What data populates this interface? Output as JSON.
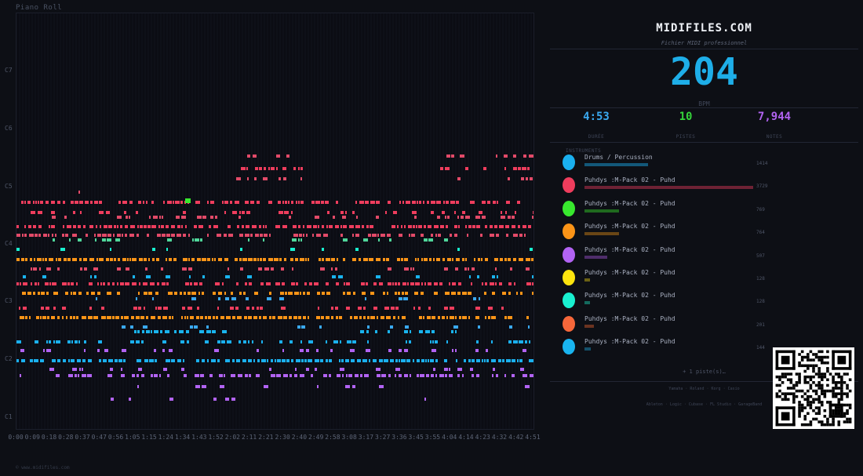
{
  "roll": {
    "title": "Piano Roll",
    "octave_labels": [
      "C7",
      "C6",
      "C5",
      "C4",
      "C3",
      "C2",
      "C1"
    ],
    "time_ticks": [
      "0:00",
      "0:09",
      "0:18",
      "0:28",
      "0:37",
      "0:47",
      "0:56",
      "1:05",
      "1:15",
      "1:24",
      "1:34",
      "1:43",
      "1:52",
      "2:02",
      "2:11",
      "2:21",
      "2:30",
      "2:40",
      "2:49",
      "2:58",
      "3:08",
      "3:17",
      "3:27",
      "3:36",
      "3:45",
      "3:55",
      "4:04",
      "4:14",
      "4:23",
      "4:32",
      "4:42",
      "4:51"
    ],
    "footer": "© www.midifiles.com"
  },
  "info": {
    "brand": "MIDIFILES.COM",
    "subtitle": "Fichier MIDI professionnel",
    "bpm": "204",
    "bpm_label": "BPM",
    "stats": [
      {
        "value": "4:53",
        "label": "DURÉE",
        "color": "#3aa9f0"
      },
      {
        "value": "10",
        "label": "PISTES",
        "color": "#35d43a"
      },
      {
        "value": "7,944",
        "label": "NOTES",
        "color": "#b163f0"
      }
    ],
    "instruments_header": "INSTRUMENTS",
    "instruments": [
      {
        "name": "Drums / Percussion",
        "count": "1414",
        "color": "#1ab0ef",
        "bar_color": "#13587a",
        "share": 0.379
      },
      {
        "name": "Puhdys :M-Pack 02 - Puhd",
        "count": "3729",
        "color": "#ef3d5d",
        "bar_color": "#6e2234",
        "share": 1.0
      },
      {
        "name": "Puhdys :M-Pack 02 - Puhd",
        "count": "769",
        "color": "#38e82e",
        "bar_color": "#1f6a1e",
        "share": 0.206
      },
      {
        "name": "Puhdys :M-Pack 02 - Puhd",
        "count": "764",
        "color": "#fb9417",
        "bar_color": "#6a4615",
        "share": 0.205
      },
      {
        "name": "Puhdys :M-Pack 02 - Puhd",
        "count": "507",
        "color": "#b263f3",
        "bar_color": "#4e2d6a",
        "share": 0.136
      },
      {
        "name": "Puhdys :M-Pack 02 - Puhd",
        "count": "128",
        "color": "#fde40e",
        "bar_color": "#6b6114",
        "share": 0.034
      },
      {
        "name": "Puhdys :M-Pack 02 - Puhd",
        "count": "128",
        "color": "#19f0d0",
        "bar_color": "#146a5e",
        "share": 0.034
      },
      {
        "name": "Puhdys :M-Pack 02 - Puhd",
        "count": "201",
        "color": "#f6673a",
        "bar_color": "#6b3320",
        "share": 0.054
      },
      {
        "name": "Puhdys :M-Pack 02 - Puhd",
        "count": "144",
        "color": "#19b4ef",
        "bar_color": "#15506a",
        "share": 0.039
      }
    ],
    "more": "+ 1 piste(s)…",
    "hardware": "Yamaha · Roland · Korg · Casio",
    "software": "Ableton · Logic · Cubase · FL Studio · GarageBand"
  }
}
